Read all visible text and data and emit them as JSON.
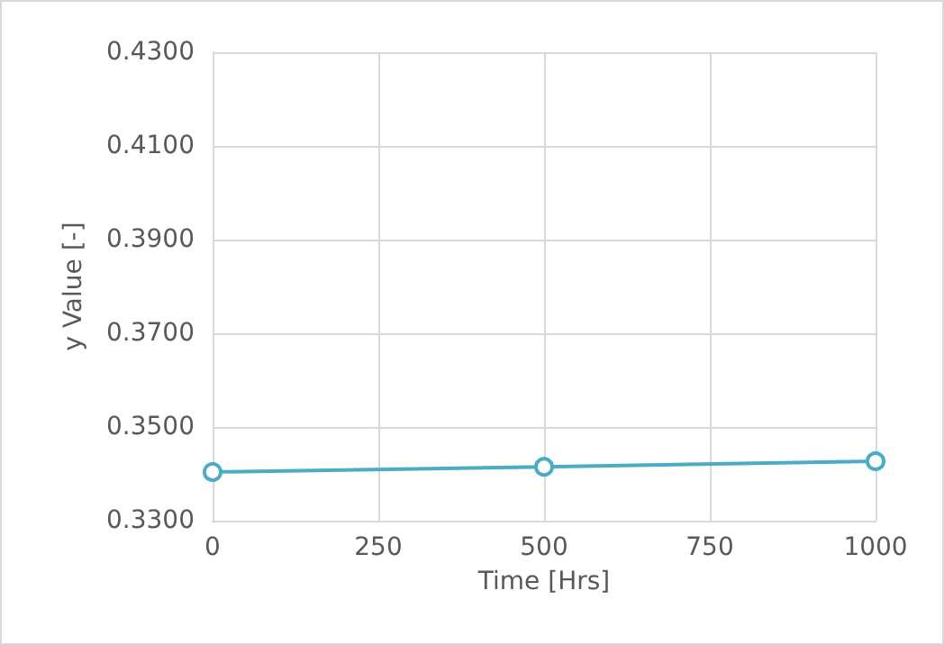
{
  "chart_data": {
    "type": "line",
    "xlabel": "Time [Hrs]",
    "ylabel": "y Value [-]",
    "x": [
      0,
      500,
      1000
    ],
    "series": [
      {
        "color": "#4bacc6",
        "values": [
          0.3404,
          0.3415,
          0.3427
        ]
      }
    ],
    "xlim": [
      0,
      1000
    ],
    "xticks": [
      0,
      250,
      500,
      750,
      1000
    ],
    "ylim": [
      0.33,
      0.43
    ],
    "yticks": [
      {
        "value": 0.33,
        "label": "0.3300"
      },
      {
        "value": 0.35,
        "label": "0.3500"
      },
      {
        "value": 0.37,
        "label": "0.3700"
      },
      {
        "value": 0.39,
        "label": "0.3900"
      },
      {
        "value": 0.41,
        "label": "0.4100"
      },
      {
        "value": 0.43,
        "label": "0.4300"
      }
    ],
    "grid": true,
    "marker": "circle",
    "line_style": "solid"
  }
}
